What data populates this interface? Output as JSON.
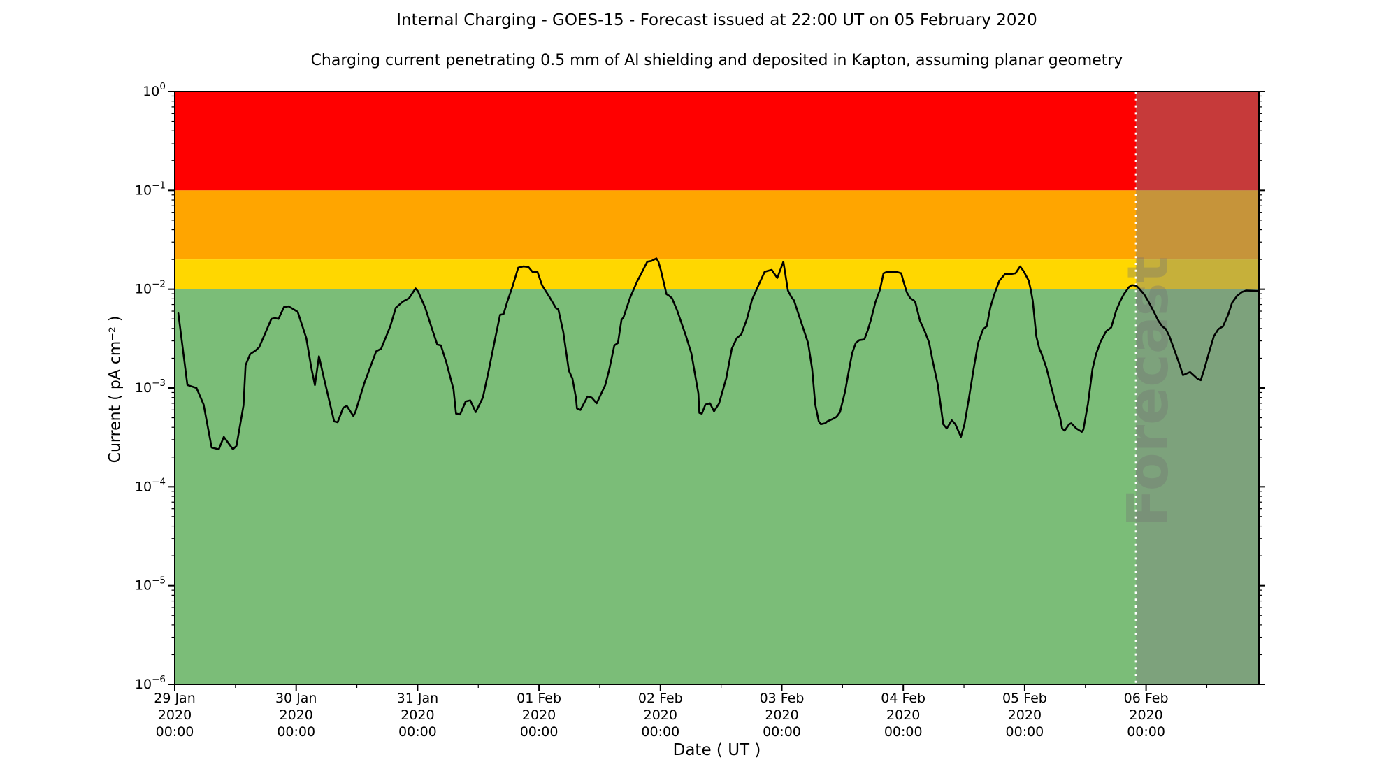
{
  "chart_data": {
    "type": "line",
    "title": "Internal Charging - GOES-15 - Forecast issued at 22:00 UT on 05 February 2020",
    "subtitle": "Charging current penetrating 0.5 mm of Al shielding and deposited in Kapton, assuming planar geometry",
    "xlabel": "Date ( UT )",
    "ylabel": "Current ( pA cm⁻² )",
    "grid": false,
    "legend": "none",
    "x_axis": {
      "start": "29 Jan 2020 00:00",
      "total_hours": 214.3,
      "major_tick_every_hours": 24,
      "minor_tick_every_hours": 12,
      "tick_labels": [
        {
          "date": "29 Jan",
          "year": "2020",
          "time": "00:00"
        },
        {
          "date": "30 Jan",
          "year": "2020",
          "time": "00:00"
        },
        {
          "date": "31 Jan",
          "year": "2020",
          "time": "00:00"
        },
        {
          "date": "01 Feb",
          "year": "2020",
          "time": "00:00"
        },
        {
          "date": "02 Feb",
          "year": "2020",
          "time": "00:00"
        },
        {
          "date": "03 Feb",
          "year": "2020",
          "time": "00:00"
        },
        {
          "date": "04 Feb",
          "year": "2020",
          "time": "00:00"
        },
        {
          "date": "05 Feb",
          "year": "2020",
          "time": "00:00"
        },
        {
          "date": "06 Feb",
          "year": "2020",
          "time": "00:00"
        }
      ]
    },
    "y_axis": {
      "scale": "log",
      "range": [
        1e-06,
        1
      ],
      "tick_exponents": [
        0,
        -1,
        -2,
        -3,
        -4,
        -5,
        -6
      ],
      "unit": "pA cm⁻²"
    },
    "bands": [
      {
        "name": "red",
        "threshold_range": [
          0.1,
          1
        ],
        "color": "#ff0000"
      },
      {
        "name": "orange",
        "threshold_range": [
          0.02,
          0.1
        ],
        "color": "#ffa500"
      },
      {
        "name": "yellow",
        "threshold_range": [
          0.01,
          0.02
        ],
        "color": "#ffd700"
      },
      {
        "name": "green",
        "threshold_range": [
          1e-06,
          0.01
        ],
        "color": "#7bbd78"
      }
    ],
    "forecast": {
      "label": "Forecast",
      "boundary_hours": 190,
      "boundary_label": "05 Feb 2020 22:00 UT",
      "boundary_line_color": "#ffffff",
      "overlay_color": "#808080",
      "overlay_opacity": 0.45,
      "watermark_color": "#737373",
      "watermark_opacity": 0.35
    },
    "series": [
      {
        "name": "internal charging current",
        "color": "#000000",
        "points": [
          [
            0.7,
            0.0057
          ],
          [
            2.5,
            0.00107
          ],
          [
            4.3,
            0.001
          ],
          [
            5.7,
            0.00068
          ],
          [
            7.3,
            0.00025
          ],
          [
            8.7,
            0.00024
          ],
          [
            9.7,
            0.00032
          ],
          [
            11.5,
            0.00024
          ],
          [
            12.2,
            0.00026
          ],
          [
            13.6,
            0.00067
          ],
          [
            14.0,
            0.0017
          ],
          [
            14.9,
            0.0022
          ],
          [
            16.0,
            0.0024
          ],
          [
            16.7,
            0.0026
          ],
          [
            19.1,
            0.005
          ],
          [
            19.8,
            0.0051
          ],
          [
            20.5,
            0.005
          ],
          [
            21.6,
            0.0066
          ],
          [
            22.5,
            0.0067
          ],
          [
            23.2,
            0.0064
          ],
          [
            24.3,
            0.0059
          ],
          [
            26.0,
            0.0032
          ],
          [
            27.0,
            0.0016
          ],
          [
            27.7,
            0.00107
          ],
          [
            28.5,
            0.0021
          ],
          [
            29.5,
            0.00125
          ],
          [
            31.5,
            0.00046
          ],
          [
            32.2,
            0.00045
          ],
          [
            33.3,
            0.00063
          ],
          [
            34.0,
            0.00066
          ],
          [
            35.3,
            0.00052
          ],
          [
            35.7,
            0.00057
          ],
          [
            37.5,
            0.00113
          ],
          [
            39.8,
            0.00235
          ],
          [
            40.8,
            0.0025
          ],
          [
            42.6,
            0.0042
          ],
          [
            43.7,
            0.0065
          ],
          [
            45.1,
            0.0075
          ],
          [
            46.3,
            0.0081
          ],
          [
            47.6,
            0.0102
          ],
          [
            48.1,
            0.0095
          ],
          [
            49.5,
            0.0065
          ],
          [
            50.9,
            0.0039
          ],
          [
            51.9,
            0.00275
          ],
          [
            52.6,
            0.0027
          ],
          [
            53.7,
            0.0018
          ],
          [
            55.1,
            0.00097
          ],
          [
            55.6,
            0.00055
          ],
          [
            56.4,
            0.00054
          ],
          [
            57.5,
            0.00073
          ],
          [
            58.4,
            0.00075
          ],
          [
            59.5,
            0.00057
          ],
          [
            60.9,
            0.0008
          ],
          [
            62.0,
            0.00145
          ],
          [
            63.4,
            0.0033
          ],
          [
            64.3,
            0.0055
          ],
          [
            65.0,
            0.0056
          ],
          [
            65.7,
            0.0074
          ],
          [
            66.8,
            0.0108
          ],
          [
            67.9,
            0.0165
          ],
          [
            68.9,
            0.017
          ],
          [
            69.9,
            0.0168
          ],
          [
            70.7,
            0.015
          ],
          [
            71.7,
            0.015
          ],
          [
            72.6,
            0.011
          ],
          [
            73.0,
            0.0102
          ],
          [
            74.1,
            0.0083
          ],
          [
            75.4,
            0.0064
          ],
          [
            75.8,
            0.0063
          ],
          [
            76.8,
            0.0037
          ],
          [
            77.9,
            0.0015
          ],
          [
            78.6,
            0.00125
          ],
          [
            79.3,
            0.0008
          ],
          [
            79.5,
            0.00062
          ],
          [
            80.2,
            0.0006
          ],
          [
            81.6,
            0.00082
          ],
          [
            82.4,
            0.0008
          ],
          [
            83.4,
            0.0007
          ],
          [
            85.1,
            0.00107
          ],
          [
            85.9,
            0.00155
          ],
          [
            86.9,
            0.0027
          ],
          [
            87.6,
            0.00285
          ],
          [
            88.3,
            0.0049
          ],
          [
            88.7,
            0.0052
          ],
          [
            90.0,
            0.0082
          ],
          [
            91.4,
            0.012
          ],
          [
            92.4,
            0.015
          ],
          [
            93.4,
            0.019
          ],
          [
            94.2,
            0.0193
          ],
          [
            95.2,
            0.0205
          ],
          [
            95.6,
            0.019
          ],
          [
            96.1,
            0.0155
          ],
          [
            97.2,
            0.0089
          ],
          [
            97.7,
            0.0086
          ],
          [
            98.3,
            0.0081
          ],
          [
            99.3,
            0.0061
          ],
          [
            101.1,
            0.0033
          ],
          [
            102.1,
            0.00225
          ],
          [
            103.5,
            0.00088
          ],
          [
            103.7,
            0.00056
          ],
          [
            104.2,
            0.00055
          ],
          [
            104.9,
            0.00068
          ],
          [
            105.8,
            0.0007
          ],
          [
            106.6,
            0.00058
          ],
          [
            107.6,
            0.0007
          ],
          [
            109.0,
            0.00125
          ],
          [
            110.1,
            0.0025
          ],
          [
            111.1,
            0.0032
          ],
          [
            112.0,
            0.0035
          ],
          [
            113.1,
            0.005
          ],
          [
            114.1,
            0.0078
          ],
          [
            115.5,
            0.0113
          ],
          [
            116.6,
            0.015
          ],
          [
            117.6,
            0.0155
          ],
          [
            118.0,
            0.0157
          ],
          [
            119.1,
            0.013
          ],
          [
            120.3,
            0.019
          ],
          [
            121.2,
            0.0097
          ],
          [
            121.9,
            0.0083
          ],
          [
            122.4,
            0.0077
          ],
          [
            123.5,
            0.0052
          ],
          [
            125.2,
            0.00285
          ],
          [
            126.0,
            0.00155
          ],
          [
            126.6,
            0.00068
          ],
          [
            127.3,
            0.00046
          ],
          [
            127.7,
            0.00043
          ],
          [
            128.6,
            0.00044
          ],
          [
            129.0,
            0.00046
          ],
          [
            130.2,
            0.00049
          ],
          [
            130.8,
            0.00051
          ],
          [
            131.5,
            0.00057
          ],
          [
            132.5,
            0.00092
          ],
          [
            133.2,
            0.00145
          ],
          [
            133.9,
            0.00225
          ],
          [
            134.6,
            0.00285
          ],
          [
            135.3,
            0.00305
          ],
          [
            136.3,
            0.0031
          ],
          [
            137.0,
            0.00385
          ],
          [
            137.6,
            0.0049
          ],
          [
            138.5,
            0.0074
          ],
          [
            139.4,
            0.0099
          ],
          [
            140.1,
            0.0145
          ],
          [
            140.8,
            0.015
          ],
          [
            142.6,
            0.015
          ],
          [
            143.6,
            0.0145
          ],
          [
            144.0,
            0.0122
          ],
          [
            144.7,
            0.0093
          ],
          [
            145.4,
            0.0081
          ],
          [
            146.1,
            0.0077
          ],
          [
            146.4,
            0.0073
          ],
          [
            147.3,
            0.0048
          ],
          [
            148.2,
            0.0038
          ],
          [
            149.1,
            0.0029
          ],
          [
            149.8,
            0.0019
          ],
          [
            150.8,
            0.0011
          ],
          [
            151.5,
            0.00061
          ],
          [
            151.9,
            0.00043
          ],
          [
            152.6,
            0.00039
          ],
          [
            153.6,
            0.00047
          ],
          [
            154.3,
            0.00043
          ],
          [
            155.4,
            0.00032
          ],
          [
            156.1,
            0.00043
          ],
          [
            157.0,
            0.0008
          ],
          [
            157.9,
            0.00155
          ],
          [
            158.8,
            0.00285
          ],
          [
            159.8,
            0.00395
          ],
          [
            160.5,
            0.0042
          ],
          [
            161.2,
            0.0065
          ],
          [
            162.0,
            0.0089
          ],
          [
            163.0,
            0.0122
          ],
          [
            164.1,
            0.0142
          ],
          [
            165.5,
            0.0143
          ],
          [
            166.2,
            0.0145
          ],
          [
            167.1,
            0.017
          ],
          [
            167.8,
            0.0152
          ],
          [
            168.8,
            0.0122
          ],
          [
            169.2,
            0.0099
          ],
          [
            169.6,
            0.0076
          ],
          [
            170.3,
            0.00335
          ],
          [
            170.9,
            0.0025
          ],
          [
            171.3,
            0.00225
          ],
          [
            172.3,
            0.0016
          ],
          [
            173.1,
            0.0011
          ],
          [
            174.1,
            0.0007
          ],
          [
            175.0,
            0.0005
          ],
          [
            175.4,
            0.00039
          ],
          [
            175.9,
            0.00037
          ],
          [
            176.8,
            0.00043
          ],
          [
            177.2,
            0.00044
          ],
          [
            178.2,
            0.00039
          ],
          [
            179.3,
            0.00036
          ],
          [
            179.6,
            0.00038
          ],
          [
            180.5,
            0.00069
          ],
          [
            181.4,
            0.00155
          ],
          [
            182.1,
            0.0022
          ],
          [
            183.0,
            0.00295
          ],
          [
            184.1,
            0.00375
          ],
          [
            185.1,
            0.0041
          ],
          [
            186.1,
            0.0061
          ],
          [
            186.9,
            0.0076
          ],
          [
            187.6,
            0.0089
          ],
          [
            188.6,
            0.0105
          ],
          [
            189.2,
            0.011
          ],
          [
            190.1,
            0.0108
          ],
          [
            190.6,
            0.0102
          ],
          [
            191.6,
            0.0089
          ],
          [
            192.4,
            0.0076
          ],
          [
            193.4,
            0.0061
          ],
          [
            194.4,
            0.0048
          ],
          [
            195.2,
            0.0042
          ],
          [
            195.9,
            0.00395
          ],
          [
            196.6,
            0.00335
          ],
          [
            197.5,
            0.0025
          ],
          [
            198.5,
            0.0018
          ],
          [
            199.3,
            0.00135
          ],
          [
            200.7,
            0.00145
          ],
          [
            202.1,
            0.00125
          ],
          [
            202.8,
            0.0012
          ],
          [
            203.5,
            0.00155
          ],
          [
            204.5,
            0.00235
          ],
          [
            205.4,
            0.00335
          ],
          [
            206.3,
            0.00395
          ],
          [
            207.2,
            0.0042
          ],
          [
            208.2,
            0.0055
          ],
          [
            209.0,
            0.0073
          ],
          [
            210.0,
            0.0086
          ],
          [
            211.0,
            0.0094
          ],
          [
            211.8,
            0.0097
          ],
          [
            214.2,
            0.0096
          ]
        ]
      }
    ]
  }
}
